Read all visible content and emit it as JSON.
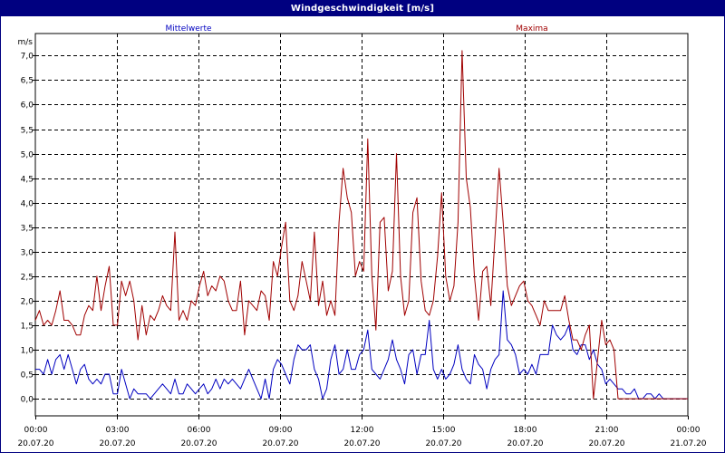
{
  "window": {
    "title": "Windgeschwindigkeit [m/s]"
  },
  "chart_data": {
    "type": "line",
    "title": "Windgeschwindigkeit [m/s]",
    "ylabel": "m/s",
    "ylim": [
      -0.35,
      7.45
    ],
    "xlim": [
      0,
      24
    ],
    "grid": true,
    "y_ticks": [
      "0,0",
      "0,5",
      "1,0",
      "1,5",
      "2,0",
      "2,5",
      "3,0",
      "3,5",
      "4,0",
      "4,5",
      "5,0",
      "5,5",
      "6,0",
      "6,5",
      "7,0"
    ],
    "x_ticks": [
      {
        "time": "00:00",
        "date": "20.07.20"
      },
      {
        "time": "03:00",
        "date": "20.07.20"
      },
      {
        "time": "06:00",
        "date": "20.07.20"
      },
      {
        "time": "09:00",
        "date": "20.07.20"
      },
      {
        "time": "12:00",
        "date": "20.07.20"
      },
      {
        "time": "15:00",
        "date": "20.07.20"
      },
      {
        "time": "18:00",
        "date": "20.07.20"
      },
      {
        "time": "21:00",
        "date": "20.07.20"
      },
      {
        "time": "00:00",
        "date": "21.07.20"
      }
    ],
    "series": [
      {
        "name": "Mittelwerte",
        "color": "#0000c0",
        "values": [
          0.6,
          0.6,
          0.5,
          0.8,
          0.5,
          0.8,
          0.9,
          0.6,
          0.9,
          0.6,
          0.3,
          0.6,
          0.7,
          0.4,
          0.3,
          0.4,
          0.3,
          0.5,
          0.5,
          0.1,
          0.1,
          0.6,
          0.3,
          0.0,
          0.2,
          0.1,
          0.1,
          0.1,
          0.0,
          0.1,
          0.2,
          0.3,
          0.2,
          0.1,
          0.4,
          0.1,
          0.1,
          0.3,
          0.2,
          0.1,
          0.2,
          0.3,
          0.1,
          0.2,
          0.4,
          0.2,
          0.4,
          0.3,
          0.4,
          0.3,
          0.2,
          0.4,
          0.6,
          0.4,
          0.2,
          0.0,
          0.4,
          0.0,
          0.6,
          0.8,
          0.7,
          0.5,
          0.3,
          0.8,
          1.1,
          1.0,
          1.0,
          1.1,
          0.6,
          0.4,
          0.0,
          0.2,
          0.8,
          1.1,
          0.5,
          0.6,
          1.0,
          0.6,
          0.6,
          0.9,
          1.0,
          1.4,
          0.6,
          0.5,
          0.4,
          0.6,
          0.8,
          1.2,
          0.8,
          0.6,
          0.3,
          0.9,
          1.0,
          0.5,
          0.9,
          0.9,
          1.6,
          0.6,
          0.4,
          0.6,
          0.4,
          0.5,
          0.7,
          1.1,
          0.6,
          0.4,
          0.3,
          0.9,
          0.7,
          0.6,
          0.2,
          0.6,
          0.8,
          0.9,
          2.2,
          1.2,
          1.1,
          0.9,
          0.5,
          0.6,
          0.5,
          0.7,
          0.5,
          0.9,
          0.9,
          0.9,
          1.5,
          1.3,
          1.2,
          1.3,
          1.5,
          1.0,
          0.9,
          1.1,
          1.1,
          0.8,
          1.0,
          0.7,
          0.6,
          0.3,
          0.4,
          0.3,
          0.2,
          0.2,
          0.1,
          0.1,
          0.2,
          0.0,
          0.0,
          0.1,
          0.1,
          0.0,
          0.1,
          0.0,
          0.0,
          0.0,
          0.0,
          0.0,
          0.0,
          0.0
        ]
      },
      {
        "name": "Maxima",
        "color": "#a00000",
        "values": [
          1.6,
          1.8,
          1.5,
          1.6,
          1.5,
          1.8,
          2.2,
          1.6,
          1.6,
          1.5,
          1.3,
          1.3,
          1.7,
          1.9,
          1.8,
          2.5,
          1.8,
          2.3,
          2.7,
          1.5,
          1.5,
          2.4,
          2.1,
          2.4,
          2.0,
          1.2,
          1.9,
          1.3,
          1.7,
          1.6,
          1.8,
          2.1,
          1.9,
          1.8,
          3.4,
          1.6,
          1.8,
          1.6,
          2.0,
          1.9,
          2.3,
          2.6,
          2.1,
          2.3,
          2.2,
          2.5,
          2.4,
          2.0,
          1.8,
          1.8,
          2.4,
          1.3,
          2.0,
          1.9,
          1.8,
          2.2,
          2.1,
          1.6,
          2.8,
          2.5,
          3.1,
          3.6,
          2.0,
          1.8,
          2.1,
          2.8,
          2.4,
          2.0,
          3.4,
          1.9,
          2.4,
          1.7,
          2.0,
          1.7,
          3.6,
          4.7,
          4.1,
          3.8,
          2.5,
          2.8,
          2.6,
          5.3,
          2.5,
          1.4,
          3.6,
          3.7,
          2.2,
          2.6,
          5.0,
          2.5,
          1.7,
          2.0,
          3.8,
          4.1,
          2.4,
          1.8,
          1.7,
          2.0,
          2.9,
          4.2,
          2.5,
          2.0,
          2.3,
          3.6,
          7.1,
          4.5,
          3.9,
          2.5,
          1.6,
          2.6,
          2.7,
          1.9,
          3.3,
          4.7,
          3.6,
          2.3,
          1.9,
          2.1,
          2.3,
          2.4,
          2.0,
          1.9,
          1.7,
          1.5,
          2.0,
          1.8,
          1.8,
          1.8,
          1.8,
          2.1,
          1.6,
          1.2,
          1.2,
          1.0,
          1.3,
          1.5,
          0.0,
          0.8,
          1.6,
          1.1,
          1.2,
          1.0,
          0.0,
          0.0,
          0.0,
          0.0,
          0.0,
          0.0,
          0.0,
          0.0,
          0.0,
          0.0,
          0.0,
          0.0,
          0.0,
          0.0,
          0.0,
          0.0,
          0.0,
          0.0
        ]
      }
    ]
  }
}
